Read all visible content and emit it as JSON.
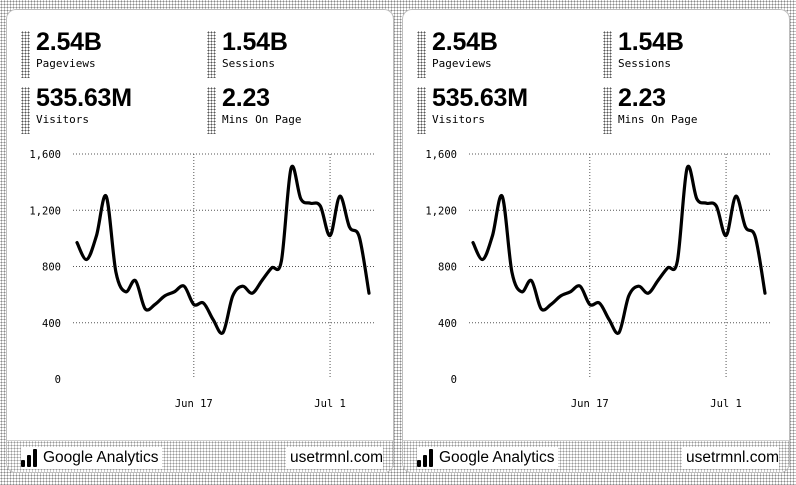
{
  "panels": [
    {
      "metrics": [
        {
          "value": "2.54B",
          "label": "Pageviews"
        },
        {
          "value": "1.54B",
          "label": "Sessions"
        },
        {
          "value": "535.63M",
          "label": "Visitors"
        },
        {
          "value": "2.23",
          "label": "Mins On Page"
        }
      ],
      "footer": {
        "brand": "Google Analytics",
        "site": "usetrmnl.com",
        "icon": "bar-chart-icon"
      }
    },
    {
      "metrics": [
        {
          "value": "2.54B",
          "label": "Pageviews"
        },
        {
          "value": "1.54B",
          "label": "Sessions"
        },
        {
          "value": "535.63M",
          "label": "Visitors"
        },
        {
          "value": "2.23",
          "label": "Mins On Page"
        }
      ],
      "footer": {
        "brand": "Google Analytics",
        "site": "usetrmnl.com",
        "icon": "bar-chart-icon"
      }
    }
  ],
  "chart_data": {
    "type": "line",
    "title": "",
    "xlabel": "",
    "ylabel": "",
    "ylim": [
      0,
      1600
    ],
    "yticks": [
      0,
      400,
      800,
      1200,
      1600
    ],
    "ytick_labels": [
      "0",
      "400",
      "800",
      "1,200",
      "1,600"
    ],
    "xtick_labels": [
      "Jun 17",
      "Jul 1"
    ],
    "xtick_index": [
      12,
      26
    ],
    "grid": true,
    "series": [
      {
        "values": [
          970,
          850,
          1020,
          1300,
          760,
          620,
          700,
          500,
          530,
          590,
          620,
          660,
          530,
          540,
          420,
          330,
          590,
          660,
          610,
          700,
          790,
          840,
          1500,
          1280,
          1250,
          1230,
          1020,
          1300,
          1080,
          1010,
          610
        ]
      }
    ]
  }
}
